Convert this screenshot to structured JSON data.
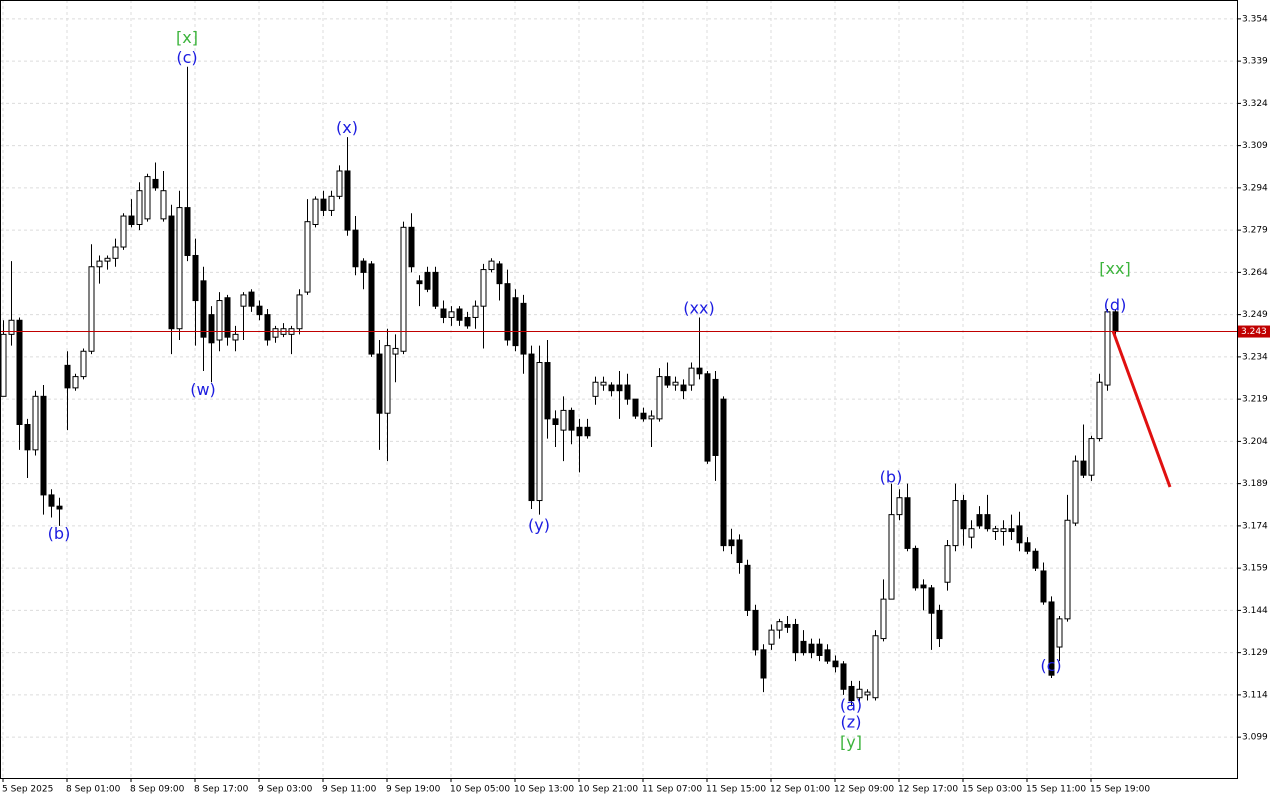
{
  "chart_data": {
    "type": "candlestick",
    "categories": [
      "5 Sep 2025",
      null,
      null,
      null,
      null,
      null,
      null,
      null,
      "8 Sep 01:00",
      null,
      null,
      null,
      null,
      null,
      null,
      null,
      "8 Sep 09:00",
      null,
      null,
      null,
      null,
      null,
      null,
      null,
      "8 Sep 17:00",
      null,
      null,
      null,
      null,
      null,
      null,
      null,
      "9 Sep 03:00",
      null,
      null,
      null,
      null,
      null,
      null,
      null,
      "9 Sep 11:00",
      null,
      null,
      null,
      null,
      null,
      null,
      null,
      "9 Sep 19:00",
      null,
      null,
      null,
      null,
      null,
      null,
      null,
      "10 Sep 05:00",
      null,
      null,
      null,
      null,
      null,
      null,
      null,
      "10 Sep 13:00",
      null,
      null,
      null,
      null,
      null,
      null,
      null,
      "10 Sep 21:00",
      null,
      null,
      null,
      null,
      null,
      null,
      null,
      "11 Sep 07:00",
      null,
      null,
      null,
      null,
      null,
      null,
      null,
      "11 Sep 15:00",
      null,
      null,
      null,
      null,
      null,
      null,
      null,
      "12 Sep 01:00",
      null,
      null,
      null,
      null,
      null,
      null,
      null,
      "12 Sep 09:00",
      null,
      null,
      null,
      null,
      null,
      null,
      null,
      "12 Sep 17:00",
      null,
      null,
      null,
      null,
      null,
      null,
      null,
      "15 Sep 03:00",
      null,
      null,
      null,
      null,
      null,
      null,
      null,
      "15 Sep 11:00",
      null,
      null,
      null,
      null,
      null,
      null,
      null,
      "15 Sep 19:00",
      null,
      null,
      null
    ],
    "open": [
      3.22,
      3.242,
      3.247,
      3.21,
      3.201,
      3.22,
      3.185,
      3.181,
      3.231,
      3.223,
      3.227,
      3.236,
      3.266,
      3.268,
      3.269,
      3.273,
      3.284,
      3.281,
      3.283,
      3.297,
      3.283,
      3.284,
      3.244,
      3.287,
      3.27,
      3.261,
      3.249,
      3.24,
      3.255,
      3.24,
      3.252,
      3.257,
      3.252,
      3.249,
      3.241,
      3.242,
      3.242,
      3.244,
      3.257,
      3.281,
      3.29,
      3.286,
      3.291,
      3.3,
      3.279,
      3.268,
      3.267,
      3.235,
      3.214,
      3.235,
      3.236,
      3.28,
      3.261,
      3.264,
      3.264,
      3.251,
      3.248,
      3.251,
      3.248,
      3.248,
      3.252,
      3.265,
      3.267,
      3.26,
      3.255,
      3.253,
      3.235,
      3.183,
      3.232,
      3.212,
      3.208,
      3.215,
      3.209,
      3.209,
      3.22,
      3.224,
      3.224,
      3.224,
      3.224,
      3.219,
      3.214,
      3.212,
      3.212,
      3.227,
      3.224,
      3.224,
      3.224,
      3.23,
      3.228,
      3.226,
      3.219,
      3.169,
      3.169,
      3.16,
      3.144,
      3.13,
      3.132,
      3.137,
      3.139,
      3.139,
      3.133,
      3.132,
      3.132,
      3.13,
      3.126,
      3.125,
      3.117,
      3.113,
      3.114,
      3.113,
      3.134,
      3.148,
      3.178,
      3.184,
      3.166,
      3.153,
      3.152,
      3.144,
      3.154,
      3.167,
      3.183,
      3.17,
      3.178,
      3.178,
      3.172,
      3.172,
      3.173,
      3.174,
      3.168,
      3.165,
      3.158,
      3.147,
      3.131,
      3.141,
      3.175,
      3.197,
      3.192,
      3.205,
      3.224,
      3.25
    ],
    "high": [
      3.247,
      3.268,
      3.248,
      3.212,
      3.222,
      3.224,
      3.187,
      3.184,
      3.236,
      3.228,
      3.237,
      3.274,
      3.27,
      3.27,
      3.276,
      3.285,
      3.29,
      3.296,
      3.299,
      3.303,
      3.3,
      3.288,
      3.293,
      3.337,
      3.276,
      3.266,
      3.252,
      3.257,
      3.256,
      3.245,
      3.257,
      3.258,
      3.254,
      3.251,
      3.245,
      3.246,
      3.245,
      3.258,
      3.29,
      3.291,
      3.293,
      3.293,
      3.302,
      3.312,
      3.284,
      3.269,
      3.268,
      3.24,
      3.244,
      3.242,
      3.282,
      3.285,
      3.263,
      3.266,
      3.266,
      3.254,
      3.252,
      3.252,
      3.25,
      3.254,
      3.267,
      3.269,
      3.268,
      3.265,
      3.258,
      3.256,
      3.238,
      3.238,
      3.24,
      3.215,
      3.22,
      3.216,
      3.212,
      3.212,
      3.227,
      3.227,
      3.225,
      3.229,
      3.228,
      3.219,
      3.216,
      3.215,
      3.23,
      3.232,
      3.227,
      3.226,
      3.232,
      3.248,
      3.229,
      3.229,
      3.22,
      3.173,
      3.171,
      3.162,
      3.146,
      3.132,
      3.139,
      3.141,
      3.142,
      3.141,
      3.137,
      3.134,
      3.134,
      3.132,
      3.128,
      3.126,
      3.119,
      3.119,
      3.116,
      3.137,
      3.155,
      3.189,
      3.187,
      3.189,
      3.167,
      3.155,
      3.153,
      3.146,
      3.169,
      3.189,
      3.185,
      3.176,
      3.181,
      3.185,
      3.174,
      3.176,
      3.178,
      3.179,
      3.17,
      3.166,
      3.161,
      3.149,
      3.142,
      3.185,
      3.199,
      3.21,
      3.206,
      3.228,
      3.251,
      3.251
    ],
    "low": [
      3.22,
      3.238,
      3.201,
      3.191,
      3.199,
      3.178,
      3.177,
      3.174,
      3.208,
      3.222,
      3.226,
      3.235,
      3.26,
      3.265,
      3.266,
      3.272,
      3.28,
      3.279,
      3.282,
      3.293,
      3.282,
      3.235,
      3.24,
      3.268,
      3.238,
      3.229,
      3.225,
      3.236,
      3.238,
      3.236,
      3.24,
      3.25,
      3.247,
      3.238,
      3.239,
      3.241,
      3.235,
      3.242,
      3.256,
      3.28,
      3.284,
      3.284,
      3.29,
      3.277,
      3.263,
      3.258,
      3.234,
      3.201,
      3.197,
      3.225,
      3.235,
      3.264,
      3.252,
      3.257,
      3.251,
      3.246,
      3.245,
      3.245,
      3.244,
      3.244,
      3.237,
      3.264,
      3.254,
      3.238,
      3.236,
      3.228,
      3.18,
      3.178,
      3.205,
      3.202,
      3.197,
      3.203,
      3.193,
      3.205,
      3.217,
      3.222,
      3.22,
      3.212,
      3.217,
      3.212,
      3.211,
      3.202,
      3.211,
      3.223,
      3.222,
      3.219,
      3.222,
      3.226,
      3.196,
      3.19,
      3.165,
      3.164,
      3.157,
      3.142,
      3.128,
      3.115,
      3.13,
      3.134,
      3.136,
      3.126,
      3.128,
      3.127,
      3.126,
      3.125,
      3.122,
      3.114,
      3.11,
      3.111,
      3.112,
      3.112,
      3.133,
      3.148,
      3.176,
      3.165,
      3.151,
      3.144,
      3.13,
      3.131,
      3.151,
      3.165,
      3.167,
      3.166,
      3.173,
      3.172,
      3.169,
      3.167,
      3.169,
      3.165,
      3.164,
      3.158,
      3.146,
      3.12,
      3.126,
      3.14,
      3.174,
      3.191,
      3.19,
      3.204,
      3.222,
      3.242
    ],
    "close": [
      3.242,
      3.247,
      3.21,
      3.201,
      3.22,
      3.185,
      3.181,
      3.18,
      3.223,
      3.227,
      3.236,
      3.266,
      3.268,
      3.269,
      3.273,
      3.284,
      3.281,
      3.293,
      3.298,
      3.294,
      3.293,
      3.244,
      3.287,
      3.27,
      3.254,
      3.241,
      3.239,
      3.254,
      3.241,
      3.242,
      3.256,
      3.252,
      3.249,
      3.24,
      3.244,
      3.244,
      3.244,
      3.256,
      3.282,
      3.29,
      3.286,
      3.291,
      3.3,
      3.279,
      3.266,
      3.264,
      3.235,
      3.214,
      3.238,
      3.237,
      3.28,
      3.266,
      3.26,
      3.258,
      3.252,
      3.248,
      3.25,
      3.247,
      3.245,
      3.252,
      3.265,
      3.268,
      3.26,
      3.24,
      3.238,
      3.235,
      3.183,
      3.232,
      3.212,
      3.21,
      3.215,
      3.208,
      3.206,
      3.206,
      3.225,
      3.225,
      3.222,
      3.222,
      3.219,
      3.213,
      3.212,
      3.213,
      3.227,
      3.224,
      3.225,
      3.222,
      3.23,
      3.228,
      3.197,
      3.199,
      3.167,
      3.167,
      3.161,
      3.144,
      3.13,
      3.12,
      3.137,
      3.14,
      3.138,
      3.129,
      3.129,
      3.129,
      3.128,
      3.126,
      3.124,
      3.116,
      3.112,
      3.116,
      3.115,
      3.135,
      3.148,
      3.178,
      3.184,
      3.166,
      3.152,
      3.152,
      3.143,
      3.134,
      3.167,
      3.183,
      3.173,
      3.173,
      3.174,
      3.173,
      3.173,
      3.173,
      3.172,
      3.168,
      3.165,
      3.159,
      3.147,
      3.121,
      3.141,
      3.176,
      3.197,
      3.192,
      3.205,
      3.225,
      3.25,
      3.243
    ],
    "up_color": "#ffffff",
    "down_color": "#000000",
    "ylim": [
      3.0845,
      3.3607
    ],
    "yticks": [
      3.354,
      3.339,
      3.324,
      3.309,
      3.294,
      3.279,
      3.264,
      3.249,
      3.234,
      3.219,
      3.204,
      3.189,
      3.174,
      3.159,
      3.144,
      3.129,
      3.114,
      3.099
    ],
    "grid": true,
    "current_price": 3.243,
    "current_price_color": "#c00000",
    "annotations": [
      {
        "text": "[x]",
        "color": "#3cb43c",
        "candle": 23,
        "price": 3.347
      },
      {
        "text": "(c)",
        "color": "#1c1ce0",
        "candle": 23,
        "price": 3.34
      },
      {
        "text": "(b)",
        "color": "#1c1ce0",
        "candle": 7,
        "price": 3.171
      },
      {
        "text": "(w)",
        "color": "#1c1ce0",
        "candle": 25,
        "price": 3.222
      },
      {
        "text": "(x)",
        "color": "#1c1ce0",
        "candle": 43,
        "price": 3.315
      },
      {
        "text": "(y)",
        "color": "#1c1ce0",
        "candle": 67,
        "price": 3.174
      },
      {
        "text": "(xx)",
        "color": "#1c1ce0",
        "candle": 87,
        "price": 3.251
      },
      {
        "text": "(a)",
        "color": "#1c1ce0",
        "candle": 106,
        "price": 3.11
      },
      {
        "text": "(z)",
        "color": "#1c1ce0",
        "candle": 106,
        "price": 3.104
      },
      {
        "text": "[y]",
        "color": "#3cb43c",
        "candle": 106,
        "price": 3.097
      },
      {
        "text": "(b)",
        "color": "#1c1ce0",
        "candle": 111,
        "price": 3.191
      },
      {
        "text": "(c)",
        "color": "#1c1ce0",
        "candle": 131,
        "price": 3.124
      },
      {
        "text": "[xx]",
        "color": "#3cb43c",
        "candle": 139,
        "price": 3.265
      },
      {
        "text": "(d)",
        "color": "#1c1ce0",
        "candle": 139,
        "price": 3.252
      }
    ]
  }
}
